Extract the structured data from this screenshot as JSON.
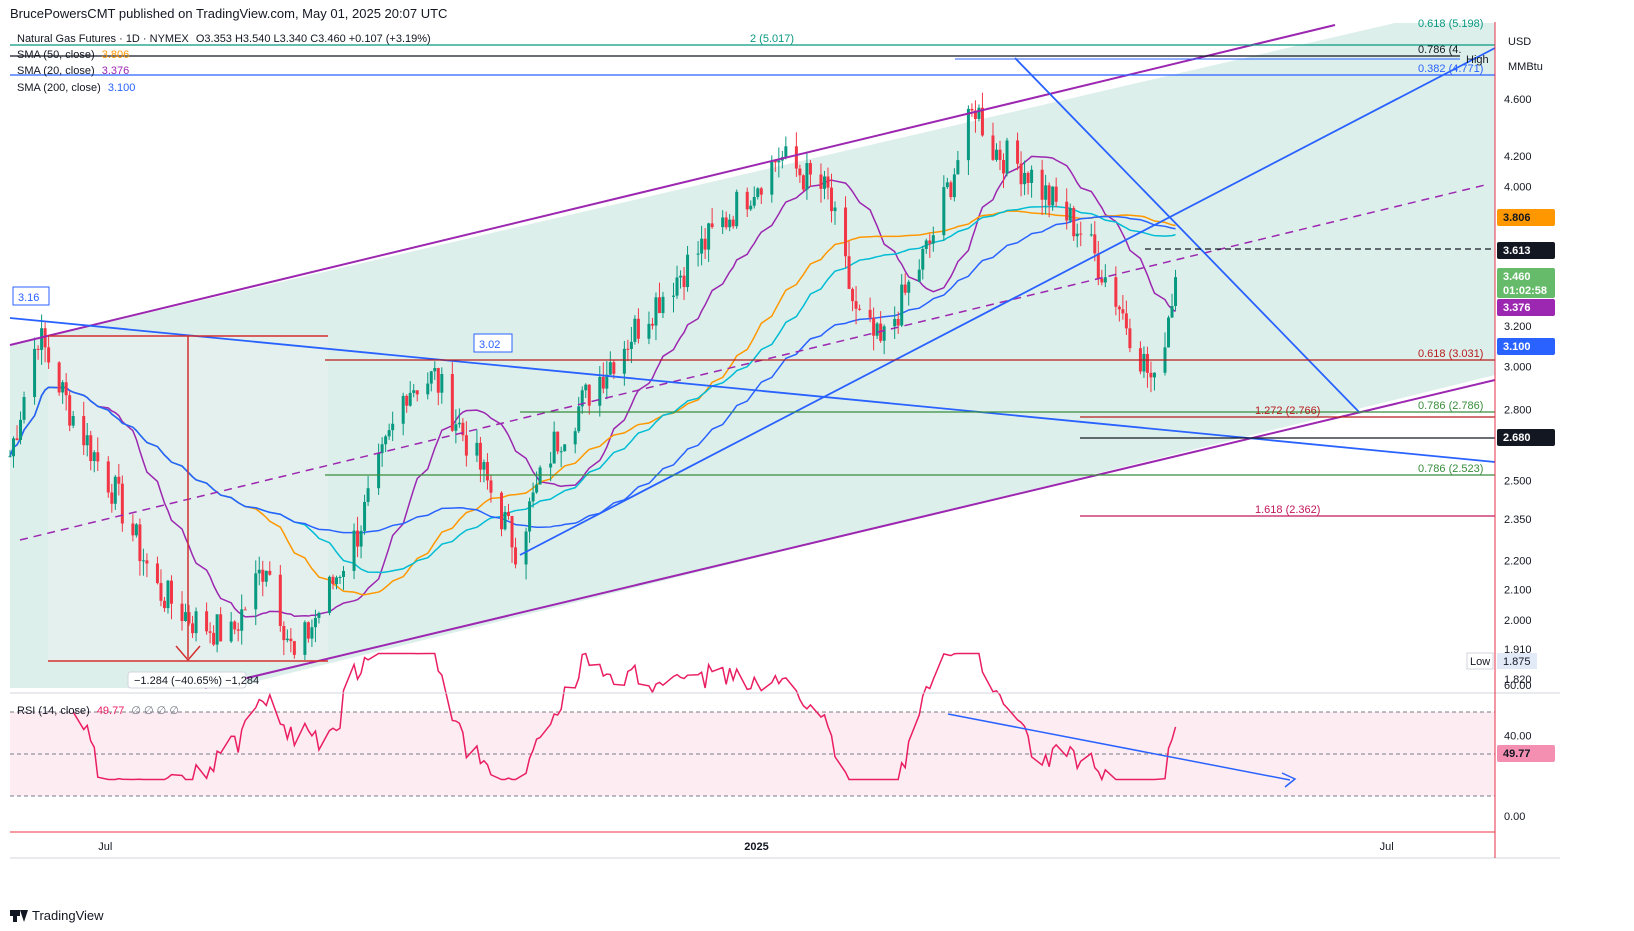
{
  "header": {
    "publisher": "BrucePowersCMT published on TradingView.com, May 01, 2025 20:07 UTC"
  },
  "legend": {
    "symbol": "Natural Gas Futures · 1D · NYMEX",
    "ohlc": "O3.353  H3.540  L3.340  C3.460  +0.107 (+3.19%)",
    "sma50_label": "SMA (50, close)",
    "sma50_value": "3.806",
    "sma20_label": "SMA (20, close)",
    "sma20_value": "3.376",
    "sma200_label": "SMA (200, close)",
    "sma200_value": "3.100",
    "rsi_label": "RSI (14, close)",
    "rsi_value": "49.77",
    "rsi_extra": "∅ ∅ ∅ ∅"
  },
  "axis": {
    "currency": "USD",
    "unit": "MMBtu",
    "price_ticks": [
      "4.600",
      "4.200",
      "4.000",
      "3.200",
      "3.000",
      "2.800",
      "2.500",
      "2.350",
      "2.200",
      "2.100",
      "2.000",
      "1.910",
      "1.820"
    ],
    "rsi_ticks": [
      "60.00",
      "40.00",
      "0.00"
    ],
    "time_ticks": [
      "Jul",
      "2025",
      "Jul"
    ]
  },
  "price_tags": {
    "sma50": "3.806",
    "dashed_level": "3.613",
    "last": "3.460",
    "countdown": "01:02:58",
    "sma20": "3.376",
    "sma200": "3.100",
    "support": "2.680",
    "low_label": "Low",
    "low_value": "1.875",
    "rsi": "49.77",
    "high_label": "High"
  },
  "levels": {
    "fib_2": "2 (5.017)",
    "fib_0786_top": "0.786 (4.",
    "fib_0382": "0.382 (4.771)",
    "fib_top_cut": "0.618 (5.198)",
    "fib_0618": "0.618 (3.031)",
    "fib_0786_mid": "0.786 (2.786)",
    "fib_1272": "1.272 (2.766)",
    "fib_0786_low": "0.786 (2.523)",
    "fib_1618": "1.618 (2.362)"
  },
  "annotations": {
    "box_316": "3.16",
    "box_302": "3.02",
    "measure": "−1.284 (−40.65%) −1,284"
  },
  "footer": {
    "brand": "TradingView"
  },
  "colors": {
    "up": "#089981",
    "down": "#f23645",
    "channel_fill": "#d7ece8",
    "channel_line": "#9c27b0",
    "trend_blue": "#2962ff",
    "sma20": "#9c27b0",
    "sma50": "#ff9800",
    "sma200": "#2962ff",
    "cyan": "#00bcd4",
    "rsi_line": "#e91e63",
    "rsi_bg": "#fce4ec"
  },
  "chart_data": {
    "type": "candlestick",
    "title": "Natural Gas Futures · 1D · NYMEX",
    "ylabel": "USD MMBtu",
    "y_scale": "log",
    "ylim": [
      1.77,
      5.25
    ],
    "x_range": [
      "2024-06-03",
      "2025-07-31"
    ],
    "candles_anchor_closes": [
      {
        "date": "2024-06-03",
        "close": 2.6
      },
      {
        "date": "2024-06-11",
        "close": 3.16
      },
      {
        "date": "2024-06-20",
        "close": 2.8
      },
      {
        "date": "2024-07-03",
        "close": 2.45
      },
      {
        "date": "2024-07-15",
        "close": 2.1
      },
      {
        "date": "2024-07-25",
        "close": 2.0
      },
      {
        "date": "2024-08-05",
        "close": 1.95
      },
      {
        "date": "2024-08-15",
        "close": 2.2
      },
      {
        "date": "2024-08-23",
        "close": 1.875
      },
      {
        "date": "2024-09-10",
        "close": 2.3
      },
      {
        "date": "2024-09-24",
        "close": 2.9
      },
      {
        "date": "2024-10-02",
        "close": 2.95
      },
      {
        "date": "2024-10-15",
        "close": 2.55
      },
      {
        "date": "2024-10-25",
        "close": 2.25
      },
      {
        "date": "2024-11-05",
        "close": 2.65
      },
      {
        "date": "2024-11-20",
        "close": 3.0
      },
      {
        "date": "2024-12-05",
        "close": 3.35
      },
      {
        "date": "2024-12-20",
        "close": 3.7
      },
      {
        "date": "2025-01-08",
        "close": 4.2
      },
      {
        "date": "2025-01-22",
        "close": 3.95
      },
      {
        "date": "2025-01-30",
        "close": 3.25
      },
      {
        "date": "2025-02-06",
        "close": 3.1
      },
      {
        "date": "2025-02-20",
        "close": 3.65
      },
      {
        "date": "2025-03-05",
        "close": 4.55
      },
      {
        "date": "2025-03-10",
        "close": 4.25
      },
      {
        "date": "2025-03-20",
        "close": 4.1
      },
      {
        "date": "2025-03-25",
        "close": 3.95
      },
      {
        "date": "2025-04-05",
        "close": 3.7
      },
      {
        "date": "2025-04-14",
        "close": 3.35
      },
      {
        "date": "2025-04-25",
        "close": 2.9
      },
      {
        "date": "2025-05-01",
        "close": 3.46
      }
    ],
    "series": [
      {
        "name": "SMA (50, close)",
        "last": 3.806
      },
      {
        "name": "SMA (20, close)",
        "last": 3.376
      },
      {
        "name": "SMA (200, close)",
        "last": 3.1
      },
      {
        "name": "RSI (14, close)",
        "last": 49.77
      }
    ],
    "levels": [
      5.017,
      4.771,
      3.613,
      3.031,
      2.786,
      2.766,
      2.68,
      2.523,
      2.362,
      1.875
    ]
  }
}
